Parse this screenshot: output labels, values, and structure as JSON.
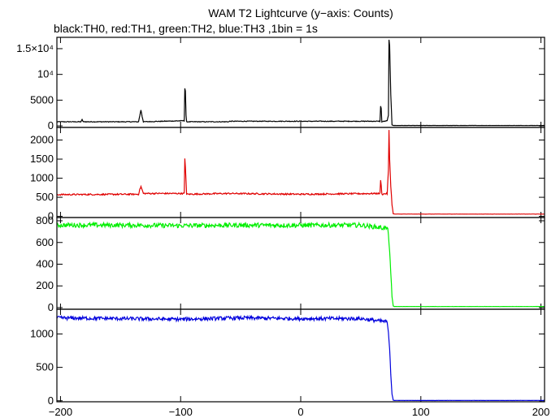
{
  "title": "WAM T2 Lightcurve (y−axis: Counts)",
  "subtitle": "black:TH0, red:TH1, green:TH2, blue:TH3 ,1bin = 1s",
  "chart_data": {
    "type": "line",
    "x_range": [
      -203,
      203
    ],
    "x_ticks": [
      -200,
      -100,
      0,
      100,
      200
    ],
    "x_tick_labels": [
      "−200",
      "−100",
      "0",
      "100",
      "200"
    ],
    "panels": [
      {
        "name": "TH0",
        "color": "#000000",
        "ylim": [
          -300,
          17200
        ],
        "y_ticks": [
          0,
          5000,
          10000,
          15000
        ],
        "y_tick_labels": [
          "0",
          "5000",
          "10⁴",
          "1.5×10⁴"
        ],
        "x": [
          -203,
          -183,
          -182,
          -181,
          -135,
          -134,
          -133,
          -132,
          -131,
          -97,
          -96.5,
          -96,
          -95.5,
          -95,
          -60,
          -59,
          66,
          66.5,
          67,
          67.5,
          72,
          73,
          73.5,
          74,
          75,
          76,
          77,
          78,
          203
        ],
        "y": [
          800,
          800,
          1200,
          800,
          800,
          2000,
          3100,
          1800,
          800,
          1000,
          7300,
          6800,
          2000,
          800,
          800,
          900,
          900,
          3800,
          3400,
          800,
          1000,
          2000,
          16800,
          15500,
          6000,
          200,
          100,
          80,
          80
        ]
      },
      {
        "name": "TH1",
        "color": "#e00000",
        "ylim": [
          -30,
          2330
        ],
        "y_ticks": [
          0,
          500,
          1000,
          1500,
          2000
        ],
        "y_tick_labels": [
          "0",
          "500",
          "1000",
          "1500",
          "2000"
        ],
        "x": [
          -203,
          -135,
          -134,
          -133,
          -131,
          -97,
          -96.5,
          -96,
          -95,
          -60,
          0,
          66,
          66.5,
          67,
          67.5,
          72,
          73,
          73.5,
          74,
          75,
          76,
          77,
          78,
          203
        ],
        "y": [
          570,
          580,
          700,
          780,
          600,
          600,
          1500,
          1300,
          580,
          600,
          580,
          600,
          940,
          840,
          580,
          600,
          1200,
          2250,
          1500,
          800,
          300,
          70,
          60,
          60
        ]
      },
      {
        "name": "TH2",
        "color": "#00ee00",
        "ylim": [
          -15,
          830
        ],
        "y_ticks": [
          0,
          200,
          400,
          600,
          800
        ],
        "y_tick_labels": [
          "0",
          "200",
          "400",
          "600",
          "800"
        ],
        "x": [
          -203,
          -150,
          -100,
          -50,
          0,
          50,
          72,
          73,
          74,
          75,
          76,
          77,
          78,
          203
        ],
        "y": [
          760,
          760,
          755,
          760,
          758,
          760,
          730,
          690,
          520,
          300,
          100,
          15,
          10,
          10
        ]
      },
      {
        "name": "TH3",
        "color": "#0000dd",
        "ylim": [
          -15,
          1370
        ],
        "y_ticks": [
          0,
          500,
          1000
        ],
        "y_tick_labels": [
          "0",
          "500",
          "1000"
        ],
        "x": [
          -203,
          -150,
          -100,
          -50,
          0,
          50,
          72,
          73,
          74,
          75,
          76,
          77,
          78,
          203
        ],
        "y": [
          1240,
          1230,
          1220,
          1240,
          1230,
          1230,
          1180,
          1000,
          800,
          400,
          100,
          10,
          5,
          5
        ]
      }
    ]
  }
}
